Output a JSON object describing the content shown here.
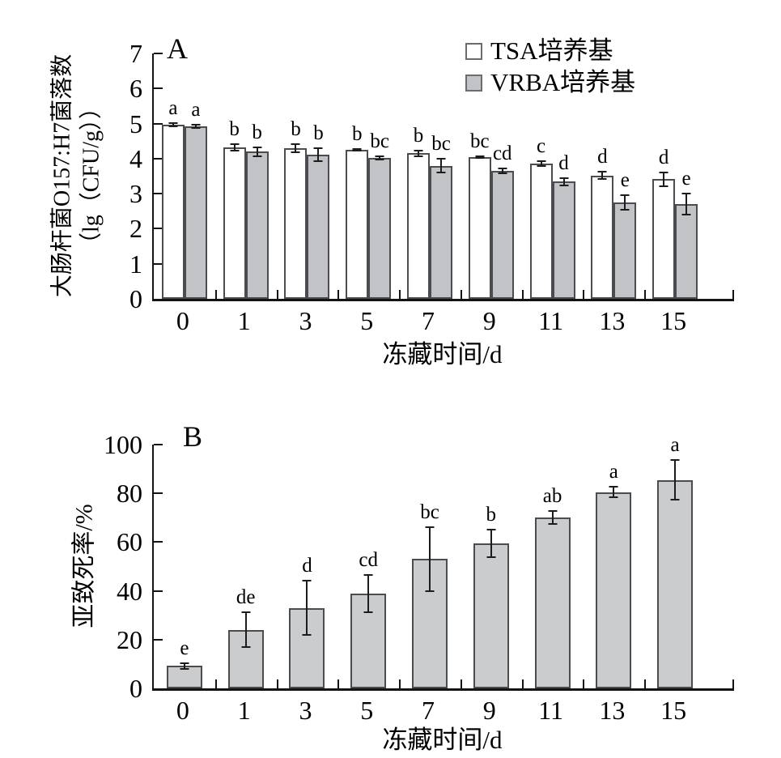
{
  "figure": {
    "background": "#ffffff"
  },
  "colors": {
    "axis": "#141414",
    "bar_border": "#4a4c50",
    "error_bar": "#1c1c1c",
    "tsa_fill": "#ffffff",
    "vrba_fill": "#c1c3c7",
    "sublethal_fill": "#cbcccd"
  },
  "chart_data": [
    {
      "id": "A",
      "type": "bar",
      "panel_label": "A",
      "xlabel": "冻藏时间/d",
      "ylabel_lines": [
        "大肠杆菌O157:H7菌落数",
        "（lg（CFU/g））"
      ],
      "categories": [
        "0",
        "1",
        "3",
        "5",
        "7",
        "9",
        "11",
        "13",
        "15"
      ],
      "ylim": [
        0,
        7
      ],
      "yticks": [
        0,
        1,
        2,
        3,
        4,
        5,
        6,
        7
      ],
      "grid": false,
      "legend_position": "top-right",
      "legend": [
        {
          "label": "TSA培养基",
          "fill": "#ffffff"
        },
        {
          "label": "VRBA培养基",
          "fill": "#c1c3c7"
        }
      ],
      "series": [
        {
          "name": "TSA培养基",
          "fill": "#ffffff",
          "values": [
            4.97,
            4.32,
            4.3,
            4.25,
            4.15,
            4.05,
            3.86,
            3.52,
            3.41
          ],
          "errors": [
            0.07,
            0.12,
            0.13,
            0.04,
            0.1,
            0.05,
            0.1,
            0.12,
            0.22
          ],
          "letters": [
            "a",
            "b",
            "b",
            "b",
            "b",
            "bc",
            "c",
            "d",
            "d"
          ]
        },
        {
          "name": "VRBA培养基",
          "fill": "#c1c3c7",
          "values": [
            4.92,
            4.2,
            4.11,
            4.02,
            3.8,
            3.65,
            3.34,
            2.75,
            2.7
          ],
          "errors": [
            0.06,
            0.15,
            0.2,
            0.07,
            0.22,
            0.1,
            0.12,
            0.22,
            0.33
          ],
          "letters": [
            "a",
            "b",
            "b",
            "bc",
            "bc",
            "cd",
            "d",
            "e",
            "e"
          ]
        }
      ]
    },
    {
      "id": "B",
      "type": "bar",
      "panel_label": "B",
      "xlabel": "冻藏时间/d",
      "ylabel_lines": [
        "亚致死率/%"
      ],
      "categories": [
        "0",
        "1",
        "3",
        "5",
        "7",
        "9",
        "11",
        "13",
        "15"
      ],
      "ylim": [
        0,
        100
      ],
      "yticks": [
        0,
        20,
        40,
        60,
        80,
        100
      ],
      "grid": false,
      "legend": [],
      "series": [
        {
          "name": "亚致死率",
          "fill": "#cbcccd",
          "values": [
            9.3,
            24,
            33,
            39,
            53,
            59.5,
            70,
            80.5,
            85.5
          ],
          "errors": [
            1.5,
            7.5,
            11.5,
            8,
            13.5,
            6,
            3,
            2.5,
            8.5
          ],
          "letters": [
            "e",
            "de",
            "d",
            "cd",
            "bc",
            "b",
            "ab",
            "a",
            "a"
          ]
        }
      ]
    }
  ]
}
